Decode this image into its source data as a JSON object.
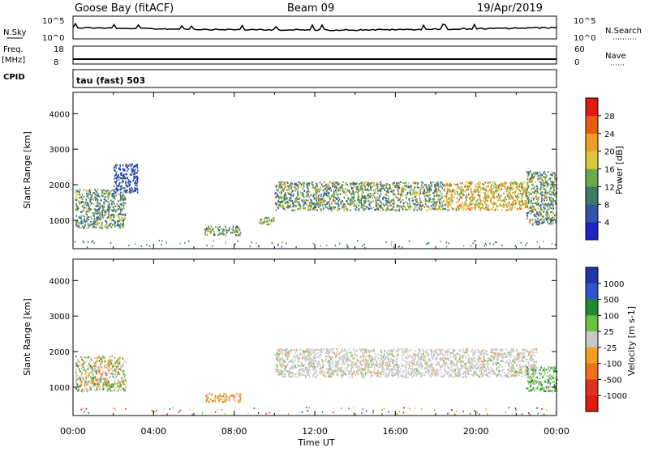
{
  "header": {
    "station": "Goose Bay (fitACF)",
    "beam": "Beam 09",
    "date": "19/Apr/2019"
  },
  "strips": {
    "nsky_label": "N.Sky",
    "nsky_tick_top": "10^5",
    "nsky_tick_bottom": "10^0",
    "nsearch_label": "N.Search",
    "nsearch_tick_top": "10^5",
    "nsearch_tick_bottom": "10^0",
    "freq_label": "Freq.",
    "freq_unit": "[MHz]",
    "freq_tick_top": "18",
    "freq_tick_bottom": "8",
    "nave_label": "Nave",
    "nave_tick_top": "60",
    "nave_tick_bottom": "0",
    "cpid_label": "CPID",
    "cpid_value": "tau (fast) 503"
  },
  "chart_data": [
    {
      "type": "heatmap",
      "name": "power",
      "ylabel": "Slant Range [km]",
      "ylim": [
        200,
        4600
      ],
      "yticks": [
        "1000",
        "2000",
        "3000",
        "4000"
      ],
      "xticks": [
        "00:00",
        "04:00",
        "08:00",
        "12:00",
        "16:00",
        "20:00",
        "00:00"
      ],
      "colorbar": {
        "label": "Power [dB]",
        "ticks": [
          "4",
          "8",
          "12",
          "16",
          "20",
          "24",
          "28"
        ],
        "range": [
          0,
          32
        ],
        "colors": [
          "#1f23c8",
          "#2f55a8",
          "#3f7a64",
          "#6aa84a",
          "#d9c63a",
          "#f0a020",
          "#e85a10",
          "#e01a10"
        ]
      },
      "regions": [
        {
          "t": [
            0.1,
            2.6
          ],
          "r": [
            800,
            1900
          ],
          "level": "low-mid"
        },
        {
          "t": [
            2.0,
            3.2
          ],
          "r": [
            1800,
            2600
          ],
          "level": "low"
        },
        {
          "t": [
            6.5,
            8.3
          ],
          "r": [
            600,
            850
          ],
          "level": "mid"
        },
        {
          "t": [
            9.2,
            10.0
          ],
          "r": [
            900,
            1100
          ],
          "level": "mid"
        },
        {
          "t": [
            10.0,
            18.5
          ],
          "r": [
            1300,
            2100
          ],
          "level": "mid"
        },
        {
          "t": [
            18.5,
            22.5
          ],
          "r": [
            1300,
            2100
          ],
          "level": "high"
        },
        {
          "t": [
            22.5,
            24.0
          ],
          "r": [
            900,
            2400
          ],
          "level": "mid"
        }
      ]
    },
    {
      "type": "heatmap",
      "name": "velocity",
      "ylabel": "Slant Range [km]",
      "xlabel": "Time UT",
      "ylim": [
        200,
        4600
      ],
      "yticks": [
        "1000",
        "2000",
        "3000",
        "4000"
      ],
      "xticks": [
        "00:00",
        "04:00",
        "08:00",
        "12:00",
        "16:00",
        "20:00",
        "00:00"
      ],
      "colorbar": {
        "label": "Velocity [m s-1]",
        "ticks": [
          "1000",
          "500",
          "100",
          "25",
          "-25",
          "-100",
          "-500",
          "-1000"
        ],
        "colors": [
          "#1f35a8",
          "#2f55c8",
          "#1f8a30",
          "#6ac040",
          "#c8c8c8",
          "#f0a020",
          "#f07020",
          "#e03020",
          "#e01a10"
        ]
      },
      "regions": [
        {
          "t": [
            0.1,
            2.6
          ],
          "r": [
            900,
            1900
          ],
          "level": "mixed"
        },
        {
          "t": [
            6.5,
            8.3
          ],
          "r": [
            600,
            850
          ],
          "level": "negative"
        },
        {
          "t": [
            10.0,
            23.0
          ],
          "r": [
            1300,
            2100
          ],
          "level": "near-zero"
        },
        {
          "t": [
            22.5,
            24.0
          ],
          "r": [
            900,
            1600
          ],
          "level": "positive"
        }
      ]
    }
  ],
  "axis": {
    "xlabel": "Time UT"
  }
}
